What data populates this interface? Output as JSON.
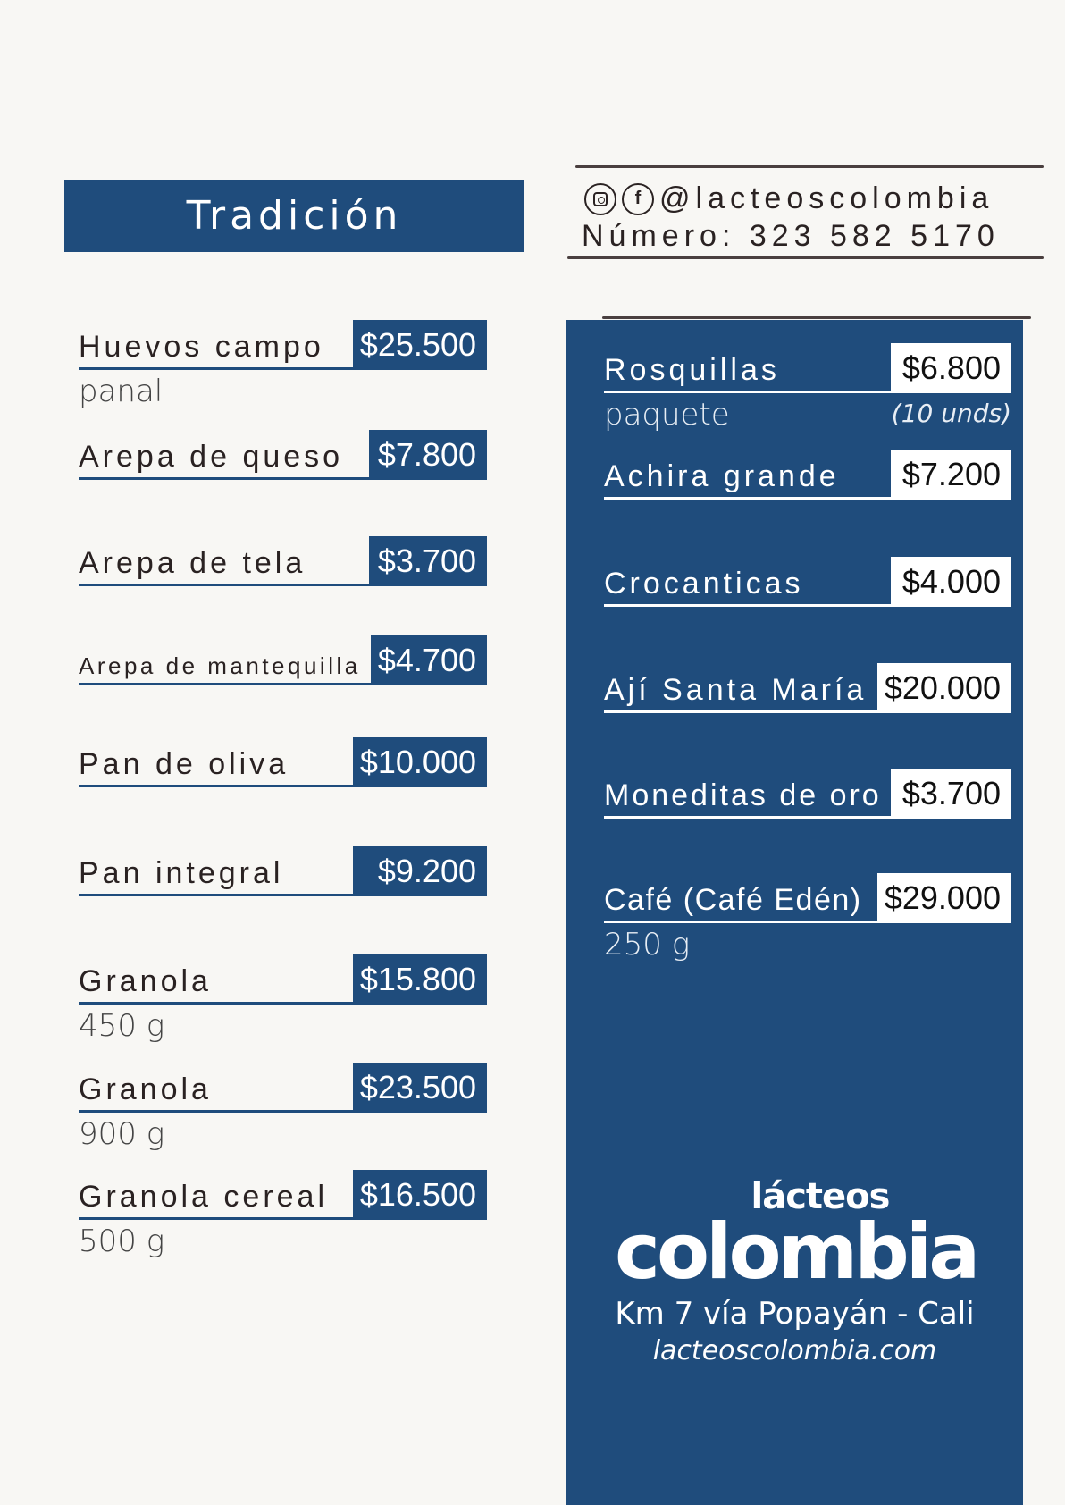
{
  "title": "Tradición",
  "contact": {
    "social_icons": [
      "instagram-icon",
      "facebook-icon"
    ],
    "handle": "@lacteoscolombia",
    "phone": "Número: 323 582 5170"
  },
  "left_items": [
    {
      "name": "Huevos campo",
      "price": "$25.500",
      "sub": "panal"
    },
    {
      "name": "Arepa de queso",
      "price": "$7.800"
    },
    {
      "name": "Arepa de tela",
      "price": "$3.700"
    },
    {
      "name": "Arepa de mantequilla",
      "price": "$4.700"
    },
    {
      "name": "Pan de oliva",
      "price": "$10.000"
    },
    {
      "name": "Pan integral",
      "price": "$9.200"
    },
    {
      "name": "Granola",
      "price": "$15.800",
      "sub": "450 g"
    },
    {
      "name": "Granola",
      "price": "$23.500",
      "sub": "900 g"
    },
    {
      "name": "Granola cereal",
      "price": "$16.500",
      "sub": "500 g"
    }
  ],
  "right_items": [
    {
      "name": "Rosquillas",
      "price": "$6.800",
      "sub": "paquete",
      "note": "(10 unds)"
    },
    {
      "name": "Achira grande",
      "price": "$7.200"
    },
    {
      "name": "Crocanticas",
      "price": "$4.000"
    },
    {
      "name": "Ají Santa María",
      "price": "$20.000"
    },
    {
      "name": "Moneditas de oro",
      "price": "$3.700"
    },
    {
      "name": "Café (Café Edén)",
      "price": "$29.000",
      "sub": "250 g"
    }
  ],
  "brand": {
    "logo_top": "lácteos",
    "logo_main": "colombia",
    "address": "Km 7 vía Popayán - Cali",
    "website": "lacteoscolombia.com"
  },
  "colors": {
    "brand_blue": "#1f4c7c",
    "background": "#f8f7f4"
  }
}
